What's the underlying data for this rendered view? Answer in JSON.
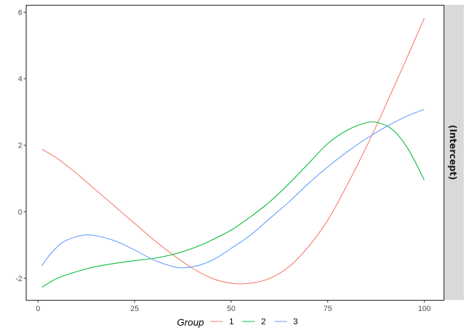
{
  "chart_data": {
    "type": "line",
    "title": "",
    "xlabel": "",
    "ylabel": "",
    "xlim": [
      -3,
      105
    ],
    "ylim": [
      -2.65,
      6.2
    ],
    "x_ticks": [
      0,
      25,
      50,
      75,
      100
    ],
    "y_ticks": [
      -2,
      0,
      2,
      4,
      6
    ],
    "x_tick_labels": [
      "0",
      "25",
      "50",
      "75",
      "100"
    ],
    "y_tick_labels": [
      "-2",
      "0",
      "2",
      "4",
      "6"
    ],
    "facet_label": "(Intercept)",
    "grid": false,
    "legend_position": "bottom",
    "legend_title": "Group",
    "series": [
      {
        "name": "1",
        "color": "#F8766D",
        "points": [
          [
            1,
            1.88
          ],
          [
            5,
            1.6
          ],
          [
            10,
            1.15
          ],
          [
            15,
            0.65
          ],
          [
            20,
            0.15
          ],
          [
            25,
            -0.35
          ],
          [
            30,
            -0.85
          ],
          [
            35,
            -1.3
          ],
          [
            40,
            -1.7
          ],
          [
            45,
            -2.0
          ],
          [
            50,
            -2.15
          ],
          [
            55,
            -2.15
          ],
          [
            60,
            -2.0
          ],
          [
            65,
            -1.65
          ],
          [
            70,
            -1.05
          ],
          [
            75,
            -0.25
          ],
          [
            80,
            0.8
          ],
          [
            85,
            1.95
          ],
          [
            90,
            3.2
          ],
          [
            95,
            4.5
          ],
          [
            100,
            5.82
          ]
        ]
      },
      {
        "name": "2",
        "color": "#00BA38",
        "points": [
          [
            1,
            -2.27
          ],
          [
            5,
            -2.0
          ],
          [
            10,
            -1.8
          ],
          [
            15,
            -1.65
          ],
          [
            20,
            -1.55
          ],
          [
            25,
            -1.47
          ],
          [
            30,
            -1.4
          ],
          [
            35,
            -1.28
          ],
          [
            40,
            -1.1
          ],
          [
            45,
            -0.85
          ],
          [
            50,
            -0.55
          ],
          [
            55,
            -0.15
          ],
          [
            60,
            0.3
          ],
          [
            65,
            0.85
          ],
          [
            70,
            1.45
          ],
          [
            75,
            2.05
          ],
          [
            80,
            2.45
          ],
          [
            85,
            2.68
          ],
          [
            88,
            2.68
          ],
          [
            92,
            2.45
          ],
          [
            96,
            1.85
          ],
          [
            100,
            0.95
          ]
        ]
      },
      {
        "name": "3",
        "color": "#619CFF",
        "points": [
          [
            1,
            -1.62
          ],
          [
            3,
            -1.3
          ],
          [
            6,
            -0.95
          ],
          [
            9,
            -0.78
          ],
          [
            12,
            -0.7
          ],
          [
            15,
            -0.72
          ],
          [
            20,
            -0.88
          ],
          [
            25,
            -1.15
          ],
          [
            30,
            -1.45
          ],
          [
            35,
            -1.65
          ],
          [
            38,
            -1.68
          ],
          [
            42,
            -1.6
          ],
          [
            46,
            -1.4
          ],
          [
            50,
            -1.1
          ],
          [
            55,
            -0.7
          ],
          [
            60,
            -0.2
          ],
          [
            65,
            0.3
          ],
          [
            70,
            0.85
          ],
          [
            75,
            1.35
          ],
          [
            80,
            1.8
          ],
          [
            85,
            2.2
          ],
          [
            90,
            2.55
          ],
          [
            95,
            2.85
          ],
          [
            100,
            3.08
          ]
        ]
      }
    ]
  }
}
